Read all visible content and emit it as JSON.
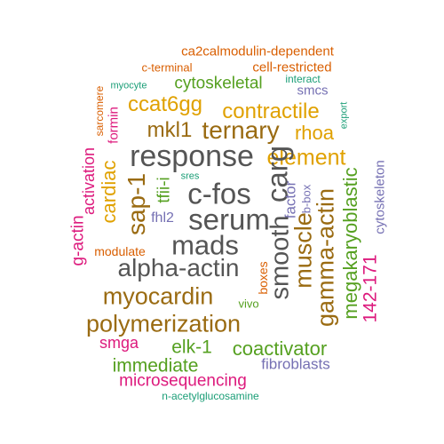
{
  "palette": {
    "gray": "#555555",
    "brown": "#9a6b12",
    "gold": "#e0a100",
    "green": "#55a020",
    "magenta": "#dd1a7d",
    "orange": "#d95f02",
    "purple": "#7570b3",
    "teal": "#1b9e77"
  },
  "words": [
    {
      "text": "ca2calmodulin-dependent",
      "color": "orange"
    },
    {
      "text": "c-terminal",
      "color": "orange"
    },
    {
      "text": "cell-restricted",
      "color": "orange"
    },
    {
      "text": "myocyte",
      "color": "teal"
    },
    {
      "text": "interact",
      "color": "teal"
    },
    {
      "text": "cytoskeletal",
      "color": "green"
    },
    {
      "text": "smcs",
      "color": "purple"
    },
    {
      "text": "sarcomere",
      "color": "orange"
    },
    {
      "text": "ccat6gg",
      "color": "gold"
    },
    {
      "text": "contractile",
      "color": "gold"
    },
    {
      "text": "export",
      "color": "teal"
    },
    {
      "text": "formin",
      "color": "magenta"
    },
    {
      "text": "mkl1",
      "color": "brown"
    },
    {
      "text": "ternary",
      "color": "brown"
    },
    {
      "text": "rhoa",
      "color": "gold"
    },
    {
      "text": "response",
      "color": "gray"
    },
    {
      "text": "element",
      "color": "gold"
    },
    {
      "text": "carg",
      "color": "gray"
    },
    {
      "text": "cardiac",
      "color": "gold"
    },
    {
      "text": "activation",
      "color": "magenta"
    },
    {
      "text": "sres",
      "color": "teal"
    },
    {
      "text": "sap-1",
      "color": "brown"
    },
    {
      "text": "tfii-i",
      "color": "green"
    },
    {
      "text": "c-fos",
      "color": "gray"
    },
    {
      "text": "factor",
      "color": "purple"
    },
    {
      "text": "b-box",
      "color": "purple"
    },
    {
      "text": "cytoskeleton",
      "color": "purple"
    },
    {
      "text": "fhl2",
      "color": "purple"
    },
    {
      "text": "serum",
      "color": "gray"
    },
    {
      "text": "smooth",
      "color": "gray"
    },
    {
      "text": "muscle",
      "color": "brown"
    },
    {
      "text": "gamma-actin",
      "color": "brown"
    },
    {
      "text": "megakaryoblastic",
      "color": "green"
    },
    {
      "text": "g-actin",
      "color": "magenta"
    },
    {
      "text": "mads",
      "color": "gray"
    },
    {
      "text": "modulate",
      "color": "orange"
    },
    {
      "text": "alpha-actin",
      "color": "gray"
    },
    {
      "text": "boxes",
      "color": "orange"
    },
    {
      "text": "142-171",
      "color": "magenta"
    },
    {
      "text": "myocardin",
      "color": "brown"
    },
    {
      "text": "vivo",
      "color": "green"
    },
    {
      "text": "polymerization",
      "color": "brown"
    },
    {
      "text": "smga",
      "color": "magenta"
    },
    {
      "text": "elk-1",
      "color": "green"
    },
    {
      "text": "coactivator",
      "color": "green"
    },
    {
      "text": "immediate",
      "color": "green"
    },
    {
      "text": "fibroblasts",
      "color": "purple"
    },
    {
      "text": "microsequencing",
      "color": "magenta"
    },
    {
      "text": "n-acetylglucosamine",
      "color": "teal"
    }
  ]
}
